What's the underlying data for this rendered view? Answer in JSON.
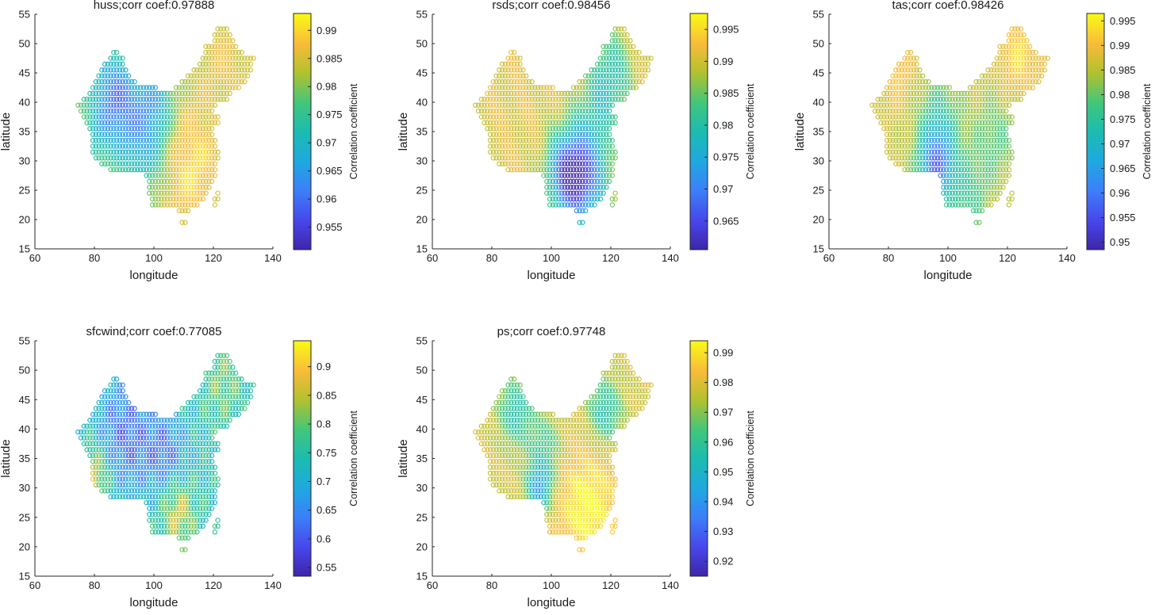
{
  "figure": {
    "layout": "2 rows x 3 columns (last cell empty)"
  },
  "chart_data": [
    {
      "type": "scatter",
      "title": "huss;corr coef:0.97888",
      "xlabel": "longitude",
      "ylabel": "latitude",
      "xlim": [
        60,
        140
      ],
      "ylim": [
        15,
        55
      ],
      "xticks": [
        "60",
        "80",
        "100",
        "120",
        "140"
      ],
      "yticks": [
        "15",
        "20",
        "25",
        "30",
        "35",
        "40",
        "45",
        "50",
        "55"
      ],
      "colorbar": {
        "label": "Correlation coefficient",
        "range": [
          0.951,
          0.993
        ],
        "ticks": [
          "0.955",
          "0.96",
          "0.965",
          "0.97",
          "0.975",
          "0.98",
          "0.985",
          "0.99"
        ]
      },
      "pattern": "huss"
    },
    {
      "type": "scatter",
      "title": "rsds;corr coef:0.98456",
      "xlabel": "longitude",
      "ylabel": "latitude",
      "xlim": [
        60,
        140
      ],
      "ylim": [
        15,
        55
      ],
      "xticks": [
        "60",
        "80",
        "100",
        "120",
        "140"
      ],
      "yticks": [
        "15",
        "20",
        "25",
        "30",
        "35",
        "40",
        "45",
        "50",
        "55"
      ],
      "colorbar": {
        "label": "Correlation coefficient",
        "range": [
          0.9605,
          0.9975
        ],
        "ticks": [
          "0.965",
          "0.97",
          "0.975",
          "0.98",
          "0.985",
          "0.99",
          "0.995"
        ]
      },
      "pattern": "rsds"
    },
    {
      "type": "scatter",
      "title": "tas;corr coef:0.98426",
      "xlabel": "longitude",
      "ylabel": "latitude",
      "xlim": [
        60,
        140
      ],
      "ylim": [
        15,
        55
      ],
      "xticks": [
        "60",
        "80",
        "100",
        "120",
        "140"
      ],
      "yticks": [
        "15",
        "20",
        "25",
        "30",
        "35",
        "40",
        "45",
        "50",
        "55"
      ],
      "colorbar": {
        "label": "Correlation coefficient",
        "range": [
          0.9485,
          0.9965
        ],
        "ticks": [
          "0.95",
          "0.955",
          "0.96",
          "0.965",
          "0.97",
          "0.975",
          "0.98",
          "0.985",
          "0.99",
          "0.995"
        ]
      },
      "pattern": "tas"
    },
    {
      "type": "scatter",
      "title": "sfcwind;corr coef:0.77085",
      "xlabel": "longitude",
      "ylabel": "latitude",
      "xlim": [
        60,
        140
      ],
      "ylim": [
        15,
        55
      ],
      "xticks": [
        "60",
        "80",
        "100",
        "120",
        "140"
      ],
      "yticks": [
        "15",
        "20",
        "25",
        "30",
        "35",
        "40",
        "45",
        "50",
        "55"
      ],
      "colorbar": {
        "label": "Correlation coefficient",
        "range": [
          0.535,
          0.945
        ],
        "ticks": [
          "0.55",
          "0.6",
          "0.65",
          "0.7",
          "0.75",
          "0.8",
          "0.85",
          "0.9"
        ]
      },
      "pattern": "sfcwind"
    },
    {
      "type": "scatter",
      "title": "ps;corr coef:0.97748",
      "xlabel": "longitude",
      "ylabel": "latitude",
      "xlim": [
        60,
        140
      ],
      "ylim": [
        15,
        55
      ],
      "xticks": [
        "60",
        "80",
        "100",
        "120",
        "140"
      ],
      "yticks": [
        "15",
        "20",
        "25",
        "30",
        "35",
        "40",
        "45",
        "50",
        "55"
      ],
      "colorbar": {
        "label": "Correlation coefficient",
        "range": [
          0.915,
          0.994
        ],
        "ticks": [
          "0.92",
          "0.93",
          "0.94",
          "0.95",
          "0.96",
          "0.97",
          "0.98",
          "0.99"
        ]
      },
      "pattern": "ps"
    }
  ]
}
